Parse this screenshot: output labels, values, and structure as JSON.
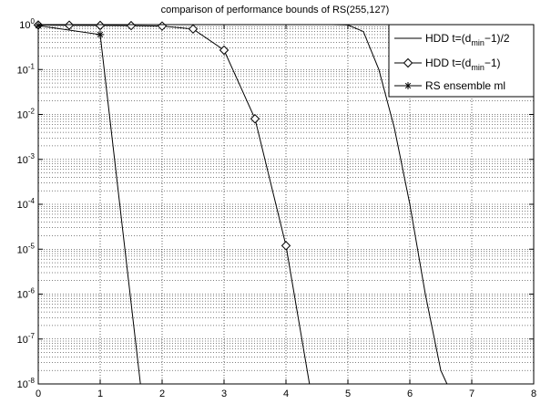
{
  "chart_data": {
    "type": "line",
    "title": "comparison of performance bounds of RS(255,127)",
    "xlabel": "",
    "ylabel": "",
    "xlim": [
      0,
      8
    ],
    "ylim": [
      1e-08,
      1
    ],
    "yscale": "log",
    "grid": true,
    "grid_minor": true,
    "legend_position": "top-right",
    "x_ticks": [
      "0",
      "1",
      "2",
      "3",
      "4",
      "5",
      "6",
      "7",
      "8"
    ],
    "y_ticks": [
      {
        "base": "10",
        "exp": "0"
      },
      {
        "base": "10",
        "exp": "-1"
      },
      {
        "base": "10",
        "exp": "-2"
      },
      {
        "base": "10",
        "exp": "-3"
      },
      {
        "base": "10",
        "exp": "-4"
      },
      {
        "base": "10",
        "exp": "-5"
      },
      {
        "base": "10",
        "exp": "-6"
      },
      {
        "base": "10",
        "exp": "-7"
      },
      {
        "base": "10",
        "exp": "-8"
      }
    ],
    "series": [
      {
        "name": "HDD t=(d_min−1)/2",
        "legend": {
          "pre": "HDD t=(d",
          "sub": "min",
          "post": "−1)/2"
        },
        "marker": "none",
        "x": [
          0,
          4.5,
          4.75,
          5.0,
          5.25,
          5.5,
          5.75,
          6.0,
          6.25,
          6.5,
          6.6
        ],
        "y": [
          1,
          1,
          0.999,
          0.98,
          0.7,
          0.1,
          0.005,
          0.0001,
          1e-06,
          2e-08,
          1e-08
        ]
      },
      {
        "name": "HDD t=(d_min−1)",
        "legend": {
          "pre": "HDD t=(d",
          "sub": "min",
          "post": "−1)"
        },
        "marker": "diamond",
        "marker_x": [
          0,
          0.5,
          1,
          1.5,
          2,
          2.5,
          3,
          3.5,
          4
        ],
        "x": [
          0,
          0.5,
          1,
          1.5,
          2,
          2.5,
          3,
          3.5,
          4,
          4.38
        ],
        "y": [
          0.98,
          0.97,
          0.96,
          0.95,
          0.93,
          0.8,
          0.27,
          0.008,
          1.2e-05,
          1e-08
        ]
      },
      {
        "name": "RS ensemble ml",
        "legend": {
          "pre": "RS ensemble ml",
          "sub": "",
          "post": ""
        },
        "marker": "star",
        "marker_x": [
          0,
          1
        ],
        "x": [
          0,
          1,
          1.65
        ],
        "y": [
          0.95,
          0.6,
          1e-08
        ]
      }
    ]
  }
}
